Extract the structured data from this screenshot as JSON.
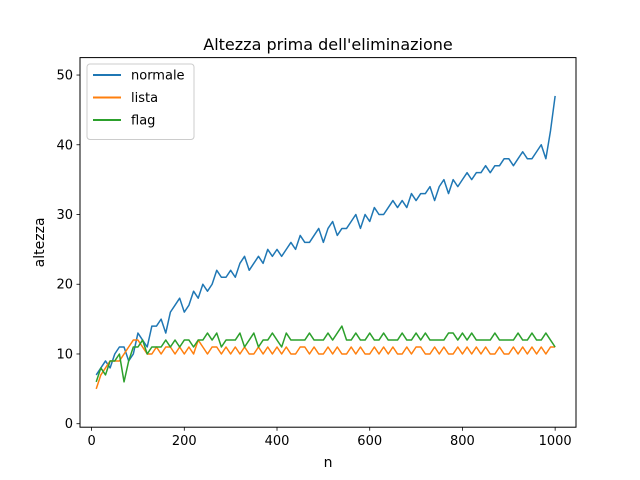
{
  "chart_data": {
    "type": "line",
    "title": "Altezza prima dell'eliminazione",
    "xlabel": "n",
    "ylabel": "altezza",
    "xlim": [
      -25,
      1045
    ],
    "ylim": [
      -0.5,
      52.5
    ],
    "xticks": [
      0,
      200,
      400,
      600,
      800,
      1000
    ],
    "yticks": [
      0,
      10,
      20,
      30,
      40,
      50
    ],
    "legend_position": "upper left",
    "x_start": 10,
    "x_end": 1000,
    "x_step": 10,
    "series": [
      {
        "name": "normale",
        "color": "#1f77b4",
        "values": [
          7,
          8,
          9,
          8,
          10,
          11,
          11,
          9,
          10,
          13,
          12,
          11,
          14,
          14,
          15,
          13,
          16,
          17,
          18,
          16,
          17,
          19,
          18,
          20,
          19,
          20,
          22,
          21,
          21,
          22,
          21,
          23,
          24,
          22,
          23,
          24,
          23,
          25,
          24,
          25,
          24,
          25,
          26,
          25,
          27,
          26,
          26,
          27,
          28,
          26,
          28,
          29,
          27,
          28,
          28,
          29,
          30,
          28,
          30,
          29,
          31,
          30,
          30,
          31,
          32,
          31,
          32,
          31,
          33,
          32,
          33,
          33,
          34,
          32,
          34,
          35,
          33,
          35,
          34,
          35,
          36,
          35,
          36,
          36,
          37,
          36,
          37,
          37,
          38,
          38,
          37,
          38,
          39,
          38,
          38,
          39,
          40,
          38,
          42,
          47
        ]
      },
      {
        "name": "lista",
        "color": "#ff7f0e",
        "values": [
          5,
          7,
          8,
          9,
          9,
          9,
          10,
          11,
          12,
          12,
          11,
          10,
          10,
          11,
          10,
          11,
          11,
          10,
          11,
          10,
          11,
          10,
          12,
          11,
          10,
          11,
          11,
          10,
          11,
          10,
          11,
          10,
          11,
          10,
          10,
          11,
          10,
          11,
          10,
          11,
          10,
          11,
          10,
          10,
          11,
          11,
          10,
          11,
          10,
          10,
          11,
          10,
          11,
          10,
          10,
          11,
          10,
          11,
          10,
          10,
          11,
          10,
          11,
          10,
          11,
          10,
          10,
          11,
          10,
          11,
          11,
          10,
          10,
          11,
          10,
          11,
          10,
          10,
          11,
          10,
          11,
          10,
          11,
          10,
          11,
          10,
          10,
          11,
          10,
          10,
          11,
          10,
          11,
          10,
          11,
          10,
          11,
          10,
          11,
          11
        ]
      },
      {
        "name": "flag",
        "color": "#2ca02c",
        "values": [
          6,
          8,
          7,
          9,
          9,
          10,
          6,
          9,
          11,
          11,
          12,
          10,
          11,
          11,
          11,
          12,
          11,
          12,
          11,
          12,
          12,
          11,
          12,
          12,
          13,
          12,
          13,
          11,
          12,
          12,
          12,
          13,
          11,
          12,
          13,
          11,
          12,
          12,
          13,
          12,
          11,
          13,
          12,
          12,
          12,
          12,
          13,
          12,
          12,
          12,
          13,
          12,
          13,
          14,
          12,
          12,
          13,
          12,
          12,
          13,
          12,
          12,
          13,
          12,
          12,
          12,
          13,
          12,
          12,
          13,
          12,
          13,
          12,
          12,
          12,
          12,
          13,
          13,
          12,
          13,
          12,
          13,
          12,
          12,
          12,
          12,
          13,
          12,
          12,
          12,
          12,
          13,
          12,
          12,
          13,
          12,
          12,
          13,
          12,
          11
        ]
      }
    ]
  }
}
